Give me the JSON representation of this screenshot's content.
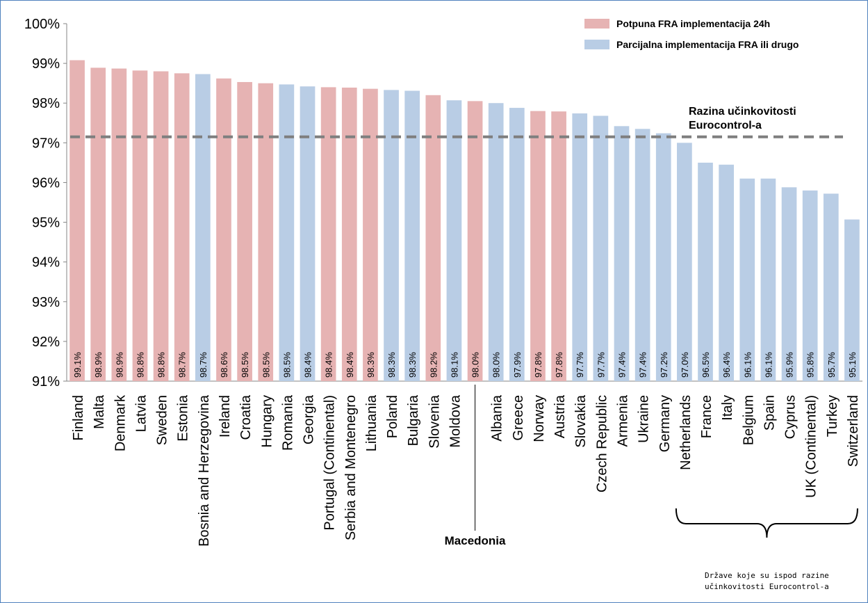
{
  "chart_data": {
    "type": "bar",
    "categories": [
      "Finland",
      "Malta",
      "Denmark",
      "Latvia",
      "Sweden",
      "Estonia",
      "Bosnia and Herzegovina",
      "Ireland",
      "Croatia",
      "Hungary",
      "Romania",
      "Georgia",
      "Portugal (Continental)",
      "Serbia and Montenegro",
      "Lithuania",
      "Poland",
      "Bulgaria",
      "Slovenia",
      "Moldova",
      "Macedonia",
      "Albania",
      "Greece",
      "Norway",
      "Austria",
      "Slovakia",
      "Czech Republic",
      "Armenia",
      "Ukraine",
      "Germany",
      "Netherlands",
      "France",
      "Italy",
      "Belgium",
      "Spain",
      "Cyprus",
      "UK (Continental)",
      "Turkey",
      "Switzerland"
    ],
    "values": [
      99.1,
      98.9,
      98.9,
      98.8,
      98.8,
      98.7,
      98.7,
      98.6,
      98.5,
      98.5,
      98.5,
      98.4,
      98.4,
      98.4,
      98.3,
      98.3,
      98.3,
      98.2,
      98.1,
      98.0,
      98.0,
      97.9,
      97.8,
      97.8,
      97.7,
      97.7,
      97.4,
      97.4,
      97.2,
      97.0,
      96.5,
      96.4,
      96.1,
      96.1,
      95.9,
      95.8,
      95.7,
      95.1
    ],
    "heights": [
      99.08,
      98.89,
      98.87,
      98.82,
      98.8,
      98.75,
      98.73,
      98.62,
      98.53,
      98.5,
      98.47,
      98.42,
      98.4,
      98.39,
      98.36,
      98.33,
      98.31,
      98.2,
      98.07,
      98.05,
      98.0,
      97.88,
      97.8,
      97.79,
      97.74,
      97.68,
      97.42,
      97.35,
      97.24,
      97.0,
      96.5,
      96.45,
      96.1,
      96.1,
      95.88,
      95.8,
      95.72,
      95.07
    ],
    "value_labels": [
      "99.1%",
      "98.9%",
      "98.9%",
      "98.8%",
      "98.8%",
      "98.7%",
      "98.7%",
      "98.6%",
      "98.5%",
      "98.5%",
      "98.5%",
      "98.4%",
      "98.4%",
      "98.4%",
      "98.3%",
      "98.3%",
      "98.3%",
      "98.2%",
      "98.1%",
      "98.0%",
      "98.0%",
      "97.9%",
      "97.8%",
      "97.8%",
      "97.7%",
      "97.7%",
      "97.4%",
      "97.4%",
      "97.2%",
      "97.0%",
      "96.5%",
      "96.4%",
      "96.1%",
      "96.1%",
      "95.9%",
      "95.8%",
      "95.7%",
      "95.1%"
    ],
    "groups": [
      "full",
      "full",
      "full",
      "full",
      "full",
      "full",
      "partial",
      "full",
      "full",
      "full",
      "partial",
      "partial",
      "full",
      "full",
      "full",
      "partial",
      "partial",
      "full",
      "partial",
      "full",
      "partial",
      "partial",
      "full",
      "full",
      "partial",
      "partial",
      "partial",
      "partial",
      "partial",
      "partial",
      "partial",
      "partial",
      "partial",
      "partial",
      "partial",
      "partial",
      "partial",
      "partial"
    ],
    "hidden_category_labels": [
      "Macedonia"
    ],
    "ylim": [
      91,
      100
    ],
    "yticks": [
      "91%",
      "92%",
      "93%",
      "94%",
      "95%",
      "96%",
      "97%",
      "98%",
      "99%",
      "100%"
    ],
    "ytick_values": [
      91,
      92,
      93,
      94,
      95,
      96,
      97,
      98,
      99,
      100
    ],
    "reference_line": {
      "value": 97.15,
      "label_lines": [
        "Razina učinkovitosti",
        "Eurocontrol-a"
      ]
    },
    "annotations": {
      "macedonia_callout": "Macedonia",
      "below_level_brace_lines": [
        "Države koje su ispod razine",
        "učinkovitosti Eurocontrol-a"
      ],
      "below_level_range": [
        "Netherlands",
        "Switzerland"
      ]
    },
    "legend": [
      {
        "name": "Potpuna FRA implementacija 24h",
        "color": "#e6b3b3"
      },
      {
        "name": "Parcijalna implementacija FRA ili drugo",
        "color": "#b9cde5"
      }
    ],
    "colors": {
      "full": "#e6b3b3",
      "partial": "#b9cde5",
      "reference_line": "#7f7f7f",
      "frame": "#4f81bd"
    }
  }
}
